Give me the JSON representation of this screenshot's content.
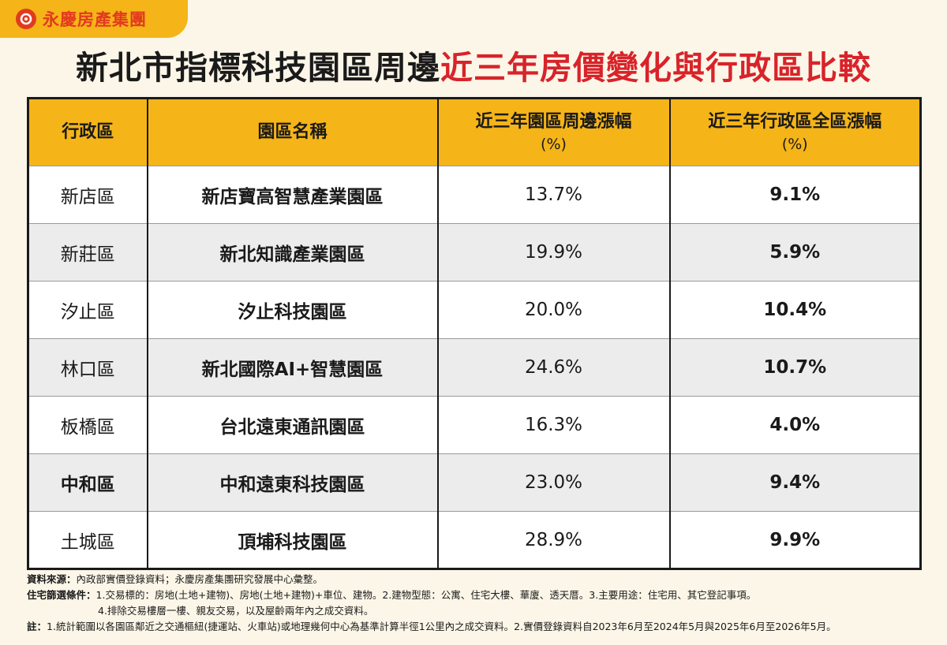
{
  "brand": {
    "name": "永慶房產集團"
  },
  "headline": {
    "part1": "新北市指標科技園區周邊",
    "part2": "近三年房價變化與行政區比較"
  },
  "table": {
    "headers": {
      "district": "行政區",
      "park": "園區名稱",
      "park_rise": "近三年園區周邊漲幅",
      "park_rise_unit": "(%)",
      "district_rise": "近三年行政區全區漲幅",
      "district_rise_unit": "(%)"
    },
    "rows": [
      {
        "district": "新店區",
        "park": "新店寶高智慧產業園區",
        "park_rise": "13.7%",
        "district_rise": "9.1%"
      },
      {
        "district": "新莊區",
        "park": "新北知識產業園區",
        "park_rise": "19.9%",
        "district_rise": "5.9%"
      },
      {
        "district": "汐止區",
        "park": "汐止科技園區",
        "park_rise": "20.0%",
        "district_rise": "10.4%"
      },
      {
        "district": "林口區",
        "park": "新北國際AI+智慧園區",
        "park_rise": "24.6%",
        "district_rise": "10.7%"
      },
      {
        "district": "板橋區",
        "park": "台北遠東通訊園區",
        "park_rise": "16.3%",
        "district_rise": "4.0%"
      },
      {
        "district": "中和區",
        "park": "中和遠東科技園區",
        "park_rise": "23.0%",
        "district_rise": "9.4%"
      },
      {
        "district": "土城區",
        "park": "頂埔科技園區",
        "park_rise": "28.9%",
        "district_rise": "9.9%"
      }
    ]
  },
  "notes": {
    "source_label": "資料來源：",
    "source_text": "內政部實價登錄資料；永慶房產集團研究發展中心彙整。",
    "filter_label": "住宅篩選條件：",
    "filter_text_1": "1.交易標的：房地(土地+建物)、房地(土地+建物)+車位、建物。2.建物型態：公寓、住宅大樓、華廈、透天厝。3.主要用途：住宅用、其它登記事項。",
    "filter_text_2": "4.排除交易樓層一樓、親友交易，以及屋齡兩年內之成交資料。",
    "remark_label": "註：",
    "remark_text": "1.統計範圍以各園區鄰近之交通樞紐(捷運站、火車站)或地理幾何中心為基準計算半徑1公里內之成交資料。2.實價登錄資料自2023年6月至2024年5月與2025年6月至2026年5月。"
  }
}
